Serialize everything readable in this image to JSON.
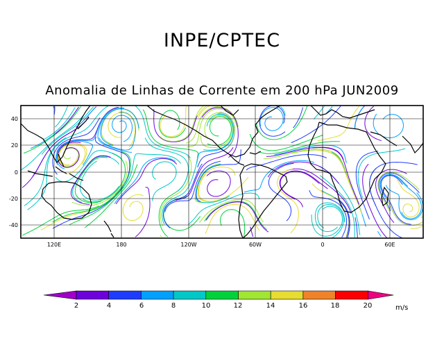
{
  "header": {
    "org": "INPE/CPTEC",
    "title": "Anomalia de Linhas de Corrente em 200 hPa JUN2009"
  },
  "map": {
    "lat_ticks": [
      "40",
      "20",
      "0",
      "-20",
      "-40"
    ],
    "lon_ticks": [
      "120E",
      "180",
      "120W",
      "60W",
      "0",
      "60E"
    ],
    "lat_range": [
      -50,
      50
    ],
    "lon_range": [
      90,
      450
    ]
  },
  "colorbar": {
    "unit": "m/s",
    "labels": [
      "2",
      "4",
      "6",
      "8",
      "10",
      "12",
      "14",
      "16",
      "18",
      "20"
    ],
    "colors": [
      "#a000c8",
      "#6e00dc",
      "#1e3cff",
      "#00a0ff",
      "#00c8c8",
      "#00d23c",
      "#a0e632",
      "#e6dc32",
      "#f08228",
      "#fa0000",
      "#f00082"
    ]
  }
}
